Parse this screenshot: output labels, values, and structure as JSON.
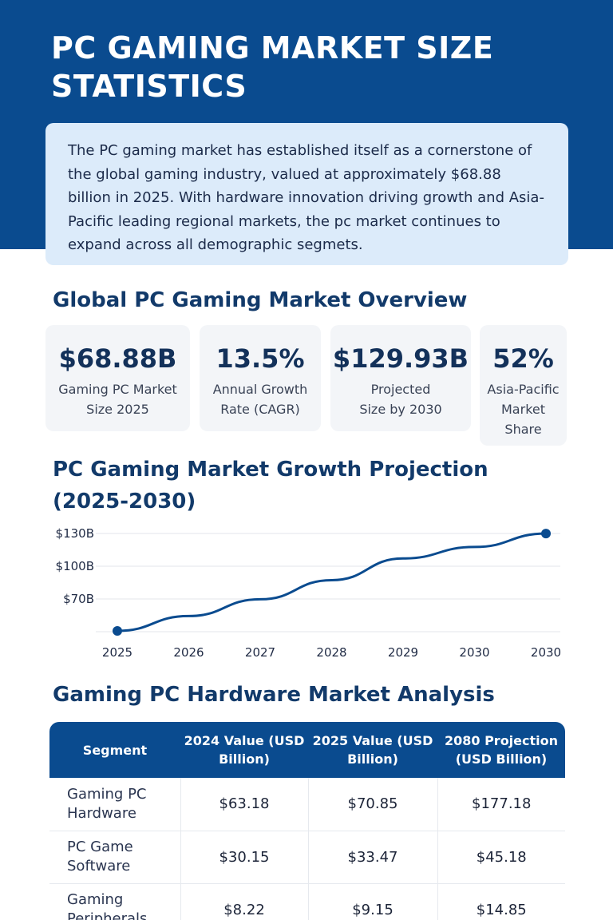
{
  "header": {
    "title": "PC GAMING MARKET SIZE STATISTICS",
    "intro": "The PC gaming market has established itself as a cornerstone of the global gaming industry, valued at approximately $68.88 billion in 2025. With hardware innovation driving growth and Asia-Pacific leading regional markets, the pc market continues to expand across all demographic segmets."
  },
  "overview": {
    "title": "Global PC Gaming Market Overview",
    "stats": [
      {
        "value": "$68.88B",
        "label": "Gaming PC Market Size 2025"
      },
      {
        "value": "13.5%",
        "label": "Annual Growth Rate (CAGR)"
      },
      {
        "value": "$129.93B",
        "label": "Projected Size by 2030"
      },
      {
        "value": "52%",
        "label": "Asia-Pacific Market Share"
      }
    ]
  },
  "growth": {
    "title": "PC Gaming Market Growth Projection (2025-2030)"
  },
  "chart_data": {
    "type": "line",
    "x": [
      "2025",
      "2026",
      "2027",
      "2028",
      "2029",
      "2030",
      "2030"
    ],
    "series": [
      {
        "values": [
          68.88,
          78.2,
          88.7,
          100.7,
          114.3,
          121.5,
          129.93
        ]
      }
    ],
    "y_ticks": [
      "$130B",
      "$100B",
      "$70B"
    ],
    "y_tick_values": [
      130,
      100,
      70
    ],
    "ylim": [
      70,
      130
    ],
    "line_color": "#0a4b8f",
    "grid": true
  },
  "hardware": {
    "title": "Gaming PC Hardware Market Analysis",
    "columns": [
      "Segment",
      "2024 Value (USD Billion)",
      "2025 Value (USD Billion)",
      "2080 Projection (USD Billion)"
    ],
    "rows": [
      [
        "Gaming PC Hardware",
        "$63.18",
        "$70.85",
        "$177.18"
      ],
      [
        "PC Game Software",
        "$30.15",
        "$33.47",
        "$45.18"
      ],
      [
        "Gaming Peripherals",
        "$8.22",
        "$9.15",
        "$14.85"
      ]
    ]
  },
  "colors": {
    "brand": "#0a4b8f",
    "intro_bg": "#dcebfa",
    "card_bg": "#f3f5f8"
  }
}
